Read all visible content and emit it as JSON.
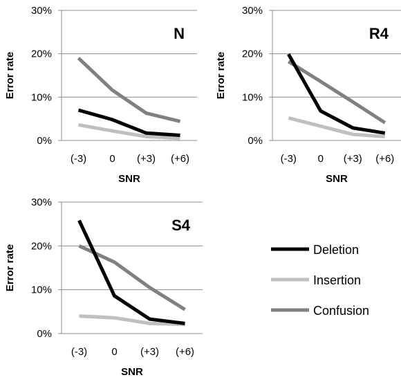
{
  "chart_data": [
    {
      "type": "line",
      "title": "N",
      "xlabel": "SNR",
      "ylabel": "Error rate",
      "categories": [
        "(-3)",
        "0",
        "(+3)",
        "(+6)"
      ],
      "ylim": [
        0,
        30
      ],
      "yticks": [
        "0%",
        "10%",
        "20%",
        "30%"
      ],
      "grid": true,
      "series": [
        {
          "name": "Deletion",
          "values": [
            7.0,
            4.8,
            1.7,
            1.2
          ]
        },
        {
          "name": "Insertion",
          "values": [
            3.6,
            2.2,
            0.9,
            0.5
          ]
        },
        {
          "name": "Confusion",
          "values": [
            19.0,
            11.6,
            6.3,
            4.4
          ]
        }
      ]
    },
    {
      "type": "line",
      "title": "R4",
      "xlabel": "SNR",
      "ylabel": "Error rate",
      "categories": [
        "(-3)",
        "0",
        "(+3)",
        "(+6)"
      ],
      "ylim": [
        0,
        30
      ],
      "yticks": [
        "0%",
        "10%",
        "20%",
        "30%"
      ],
      "grid": true,
      "series": [
        {
          "name": "Deletion",
          "values": [
            19.9,
            6.8,
            2.9,
            1.7
          ]
        },
        {
          "name": "Insertion",
          "values": [
            5.2,
            3.3,
            1.4,
            0.9
          ]
        },
        {
          "name": "Confusion",
          "values": [
            18.2,
            13.6,
            8.9,
            4.1
          ]
        }
      ]
    },
    {
      "type": "line",
      "title": "S4",
      "xlabel": "SNR",
      "ylabel": "Error rate",
      "categories": [
        "(-3)",
        "0",
        "(+3)",
        "(+6)"
      ],
      "ylim": [
        0,
        30
      ],
      "yticks": [
        "0%",
        "10%",
        "20%",
        "30%"
      ],
      "grid": true,
      "series": [
        {
          "name": "Deletion",
          "values": [
            25.8,
            8.6,
            3.3,
            2.3
          ]
        },
        {
          "name": "Insertion",
          "values": [
            4.0,
            3.6,
            2.3,
            2.1
          ]
        },
        {
          "name": "Confusion",
          "values": [
            20.0,
            16.3,
            10.5,
            5.5
          ]
        }
      ]
    }
  ],
  "legend": {
    "items": [
      {
        "name": "Deletion",
        "color": "#000000"
      },
      {
        "name": "Insertion",
        "color": "#bfbfbf"
      },
      {
        "name": "Confusion",
        "color": "#808080"
      }
    ]
  },
  "colors": {
    "Deletion": "#000000",
    "Insertion": "#bfbfbf",
    "Confusion": "#808080",
    "gridline": "#8c8c8c",
    "axis": "#8c8c8c"
  }
}
